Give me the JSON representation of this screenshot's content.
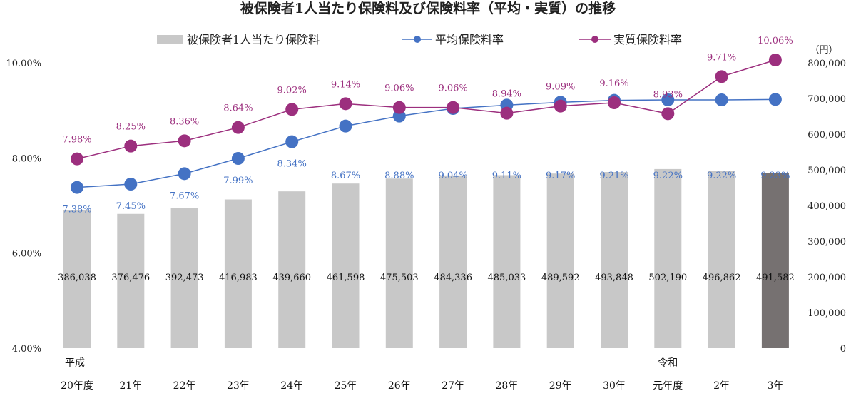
{
  "chart_data": {
    "type": "bar+line",
    "title": "被保険者1人当たり保険料及び保険料率（平均・実質）の推移",
    "categories": [
      "平成\n20年度",
      "21年",
      "22年",
      "23年",
      "24年",
      "25年",
      "26年",
      "27年",
      "28年",
      "29年",
      "30年",
      "令和\n元年度",
      "2年",
      "3年"
    ],
    "category_lines": [
      [
        "平成",
        "20年度"
      ],
      [
        "",
        "21年"
      ],
      [
        "",
        "22年"
      ],
      [
        "",
        "23年"
      ],
      [
        "",
        "24年"
      ],
      [
        "",
        "25年"
      ],
      [
        "",
        "26年"
      ],
      [
        "",
        "27年"
      ],
      [
        "",
        "28年"
      ],
      [
        "",
        "29年"
      ],
      [
        "",
        "30年"
      ],
      [
        "令和",
        "元年度"
      ],
      [
        "",
        "2年"
      ],
      [
        "",
        "3年"
      ]
    ],
    "bars": {
      "name": "被保険者1人当たり保険料",
      "axis": "right",
      "values": [
        386038,
        376476,
        392473,
        416983,
        439660,
        461598,
        475503,
        484336,
        485033,
        489592,
        493848,
        502190,
        496862,
        491582
      ],
      "labels": [
        "386,038",
        "376,476",
        "392,473",
        "416,983",
        "439,660",
        "461,598",
        "475,503",
        "484,336",
        "485,033",
        "489,592",
        "493,848",
        "502,190",
        "496,862",
        "491,582"
      ],
      "color": "#c8c8c8",
      "highlight_color": "#767171",
      "highlight_index": 13
    },
    "series": [
      {
        "name": "平均保険料率",
        "axis": "left",
        "values": [
          7.38,
          7.45,
          7.67,
          7.99,
          8.34,
          8.67,
          8.88,
          9.04,
          9.11,
          9.17,
          9.21,
          9.22,
          9.22,
          9.23
        ],
        "labels": [
          "7.38%",
          "7.45%",
          "7.67%",
          "7.99%",
          "8.34%",
          "8.67%",
          "8.88%",
          "9.04%",
          "9.11%",
          "9.17%",
          "9.21%",
          "9.22%",
          "9.22%",
          "9.23%"
        ],
        "color": "#4472c4"
      },
      {
        "name": "実質保険料率",
        "axis": "left",
        "values": [
          7.98,
          8.25,
          8.36,
          8.64,
          9.02,
          9.14,
          9.06,
          9.06,
          8.94,
          9.09,
          9.16,
          8.93,
          9.71,
          10.06
        ],
        "labels": [
          "7.98%",
          "8.25%",
          "8.36%",
          "8.64%",
          "9.02%",
          "9.14%",
          "9.06%",
          "9.06%",
          "8.94%",
          "9.09%",
          "9.16%",
          "8.93%",
          "9.71%",
          "10.06%"
        ],
        "color": "#9c2f7e"
      }
    ],
    "y_left": {
      "range": [
        4,
        10
      ],
      "ticks": [
        "4.00%",
        "6.00%",
        "8.00%",
        "10.00%"
      ],
      "tick_values": [
        4,
        6,
        8,
        10
      ]
    },
    "y_right": {
      "range": [
        0,
        800000
      ],
      "unit": "（円）",
      "ticks": [
        "0",
        "100,000",
        "200,000",
        "300,000",
        "400,000",
        "500,000",
        "600,000",
        "700,000",
        "800,000"
      ],
      "tick_values": [
        0,
        100000,
        200000,
        300000,
        400000,
        500000,
        600000,
        700000,
        800000
      ]
    },
    "legend_position": "top",
    "grid": false
  }
}
